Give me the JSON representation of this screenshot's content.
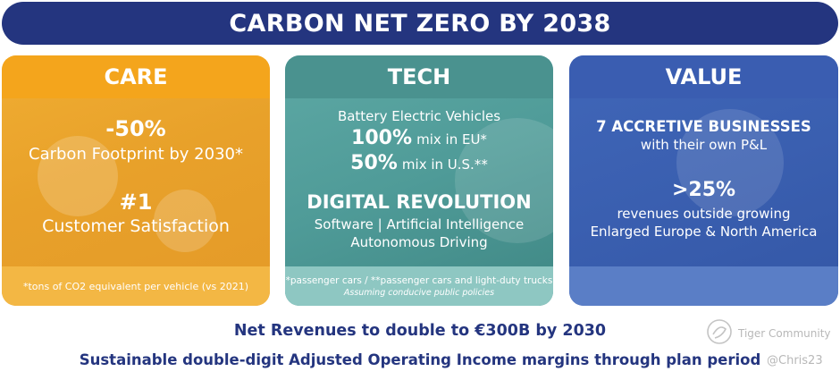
{
  "banner": {
    "title": "CARBON NET ZERO BY 2038"
  },
  "care": {
    "title": "CARE",
    "stat1": "-50%",
    "stat1_desc": "Carbon Footprint by 2030*",
    "stat2": "#1",
    "stat2_desc": "Customer Satisfaction",
    "footnote": "*tons of CO2 equivalent per vehicle (vs 2021)"
  },
  "tech": {
    "title": "TECH",
    "bev_label": "Battery Electric Vehicles",
    "eu_value": "100%",
    "eu_text": "mix in EU*",
    "us_value": "50%",
    "us_text": "mix in U.S.**",
    "digital_title": "DIGITAL REVOLUTION",
    "digital_line1": "Software | Artificial Intelligence",
    "digital_line2": "Autonomous Driving",
    "footnote1": "*passenger cars / **passenger cars and light-duty trucks",
    "footnote2": "Assuming conducive public policies"
  },
  "value": {
    "title": "VALUE",
    "businesses_title": "7 ACCRETIVE BUSINESSES",
    "businesses_sub": "with their own P&L",
    "stat": ">25%",
    "stat_line1": "revenues outside growing",
    "stat_line2": "Enlarged Europe & North America"
  },
  "bottom": {
    "line1": "Net Revenues to double to €300B by 2030",
    "line2": "Sustainable double-digit Adjusted Operating Income margins through plan period"
  },
  "watermark": {
    "brand": "Tiger Community",
    "user": "@Chris23",
    "icon": "tiger-logo-icon"
  }
}
